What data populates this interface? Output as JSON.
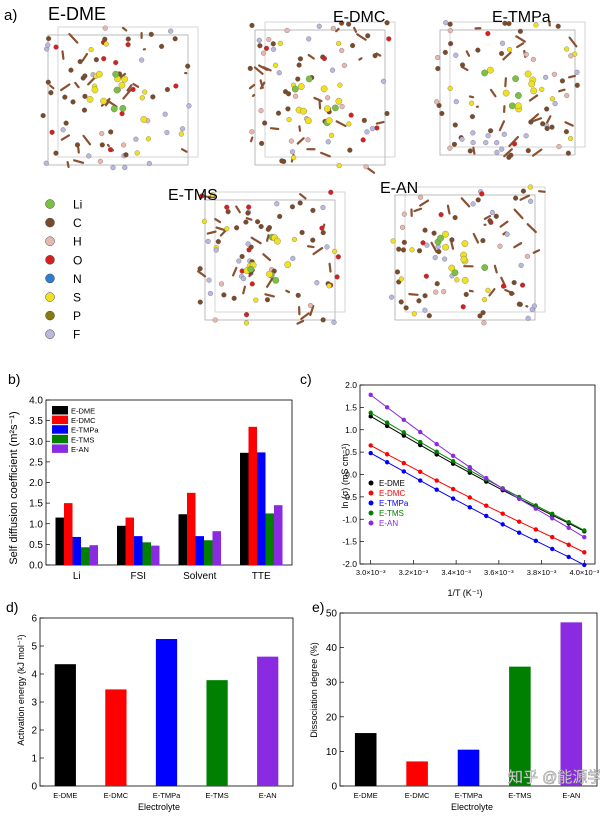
{
  "panel_labels": {
    "a": "a)",
    "b": "b)",
    "c": "c)",
    "d": "d)",
    "e": "e)"
  },
  "molecules": [
    {
      "label": "E-DME",
      "color": "#000000"
    },
    {
      "label": "E-DMC",
      "color": "#e02020"
    },
    {
      "label": "E-TMPa",
      "color": "#2a2ad0"
    },
    {
      "label": "E-TMS",
      "color": "#1aa84a"
    },
    {
      "label": "E-AN",
      "color": "#6a2ac8"
    }
  ],
  "atom_legend": [
    {
      "symbol": "Li",
      "color": "#7bc043"
    },
    {
      "symbol": "C",
      "color": "#7a4a2a"
    },
    {
      "symbol": "H",
      "color": "#e8b8b0"
    },
    {
      "symbol": "O",
      "color": "#d62020"
    },
    {
      "symbol": "N",
      "color": "#2a7fd0"
    },
    {
      "symbol": "S",
      "color": "#f0e020"
    },
    {
      "symbol": "P",
      "color": "#8a7a10"
    },
    {
      "symbol": "F",
      "color": "#b8b8e0"
    }
  ],
  "series_colors": {
    "E-DME": "#000000",
    "E-DMC": "#ff0000",
    "E-TMPa": "#0000ff",
    "E-TMS": "#008000",
    "E-AN": "#8a2be2"
  },
  "chart_data": [
    {
      "id": "b",
      "type": "bar",
      "title": "",
      "ylabel": "Self diffusion coefficient (m²s⁻¹)",
      "xlabel": "",
      "categories": [
        "Li",
        "FSI",
        "Solvent",
        "TTE"
      ],
      "yticks": [
        "0.0",
        "0.5",
        "1.0",
        "1.5",
        "2.0",
        "2.5",
        "3.0",
        "3.5",
        "4.0"
      ],
      "ylim": [
        0,
        4.0
      ],
      "legend_position": "top-left",
      "series": [
        {
          "name": "E-DME",
          "values": [
            1.15,
            0.95,
            1.23,
            2.72
          ]
        },
        {
          "name": "E-DMC",
          "values": [
            1.5,
            1.15,
            1.75,
            3.35
          ]
        },
        {
          "name": "E-TMPa",
          "values": [
            0.68,
            0.7,
            0.7,
            2.73
          ]
        },
        {
          "name": "E-TMS",
          "values": [
            0.43,
            0.55,
            0.6,
            1.25
          ]
        },
        {
          "name": "E-AN",
          "values": [
            0.48,
            0.47,
            0.82,
            1.45
          ]
        }
      ]
    },
    {
      "id": "c",
      "type": "line",
      "title": "",
      "ylabel": "ln (σ) (mS cm⁻¹)",
      "xlabel": "1/T (K⁻¹)",
      "xlim": [
        0.00295,
        0.00405
      ],
      "ylim": [
        -2.0,
        2.0
      ],
      "xticks": [
        "3.0×10⁻³",
        "3.2×10⁻³",
        "3.4×10⁻³",
        "3.6×10⁻³",
        "3.8×10⁻³",
        "4.0×10⁻³"
      ],
      "yticks": [
        "-2.0",
        "-1.5",
        "-1.0",
        "-0.5",
        "0.0",
        "0.5",
        "1.0",
        "1.5",
        "2.0"
      ],
      "legend_position": "bottom-left",
      "x": [
        0.003,
        0.003077,
        0.003155,
        0.003232,
        0.003309,
        0.003386,
        0.003464,
        0.003541,
        0.003618,
        0.003695,
        0.003773,
        0.00385,
        0.003927,
        0.004
      ],
      "series": [
        {
          "name": "E-DME",
          "endpoints": [
            1.3,
            -1.22
          ],
          "curve": 0.25
        },
        {
          "name": "E-DMC",
          "endpoints": [
            0.65,
            -1.7
          ],
          "curve": 0.2
        },
        {
          "name": "E-TMPa",
          "endpoints": [
            0.48,
            -1.98
          ],
          "curve": 0.2
        },
        {
          "name": "E-TMS",
          "endpoints": [
            1.38,
            -1.2
          ],
          "curve": 0.25
        },
        {
          "name": "E-AN",
          "endpoints": [
            1.78,
            -1.3
          ],
          "curve": 0.5
        }
      ]
    },
    {
      "id": "d",
      "type": "bar",
      "title": "",
      "ylabel": "Activation energy (kJ mol⁻¹)",
      "xlabel": "Electrolyte",
      "categories": [
        "E-DME",
        "E-DMC",
        "E-TMPa",
        "E-TMS",
        "E-AN"
      ],
      "values": [
        4.35,
        3.45,
        5.25,
        3.78,
        4.62
      ],
      "yticks": [
        "0",
        "1",
        "2",
        "3",
        "4",
        "5",
        "6"
      ],
      "ylim": [
        0,
        6
      ]
    },
    {
      "id": "e",
      "type": "bar",
      "title": "",
      "ylabel": "Dissociation degree (%)",
      "xlabel": "Electrolyte",
      "categories": [
        "E-DME",
        "E-DMC",
        "E-TMPa",
        "E-TMS",
        "E-AN"
      ],
      "values": [
        15.3,
        7.1,
        10.5,
        34.5,
        47.3
      ],
      "yticks": [
        "0",
        "10",
        "20",
        "30",
        "40",
        "50"
      ],
      "ylim": [
        0,
        50
      ]
    }
  ],
  "watermark": "知乎 @能源学人"
}
